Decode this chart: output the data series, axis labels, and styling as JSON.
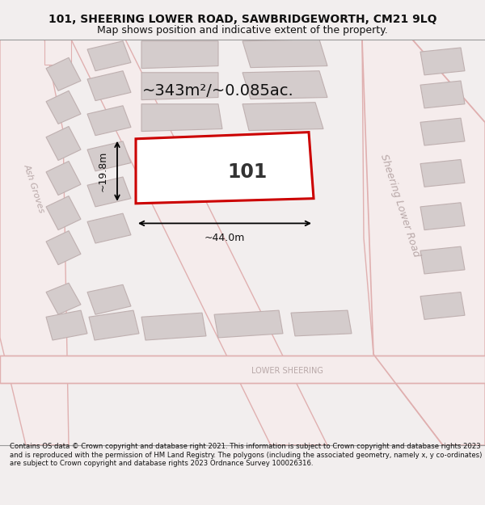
{
  "title_line1": "101, SHEERING LOWER ROAD, SAWBRIDGEWORTH, CM21 9LQ",
  "title_line2": "Map shows position and indicative extent of the property.",
  "footer_text": "Contains OS data © Crown copyright and database right 2021. This information is subject to Crown copyright and database rights 2023 and is reproduced with the permission of HM Land Registry. The polygons (including the associated geometry, namely x, y co-ordinates) are subject to Crown copyright and database rights 2023 Ordnance Survey 100026316.",
  "bg_color": "#f2eeee",
  "map_bg": "#ede8e8",
  "road_fill": "#f5ecec",
  "road_edge": "#e0b0b0",
  "building_fill": "#d4cccc",
  "building_edge": "#bfb0b0",
  "plot_color": "#cc0000",
  "plot_fill": "#ffffff",
  "label_101": "101",
  "area_label": "~343m²/~0.085ac.",
  "width_label": "~44.0m",
  "height_label": "~19.8m",
  "road_label_right": "Sheering Lower Road",
  "road_label_left": "Ash Groves",
  "road_label_bottom": "LOWER SHEERING",
  "figsize": [
    6.0,
    6.25
  ],
  "dpi": 100
}
